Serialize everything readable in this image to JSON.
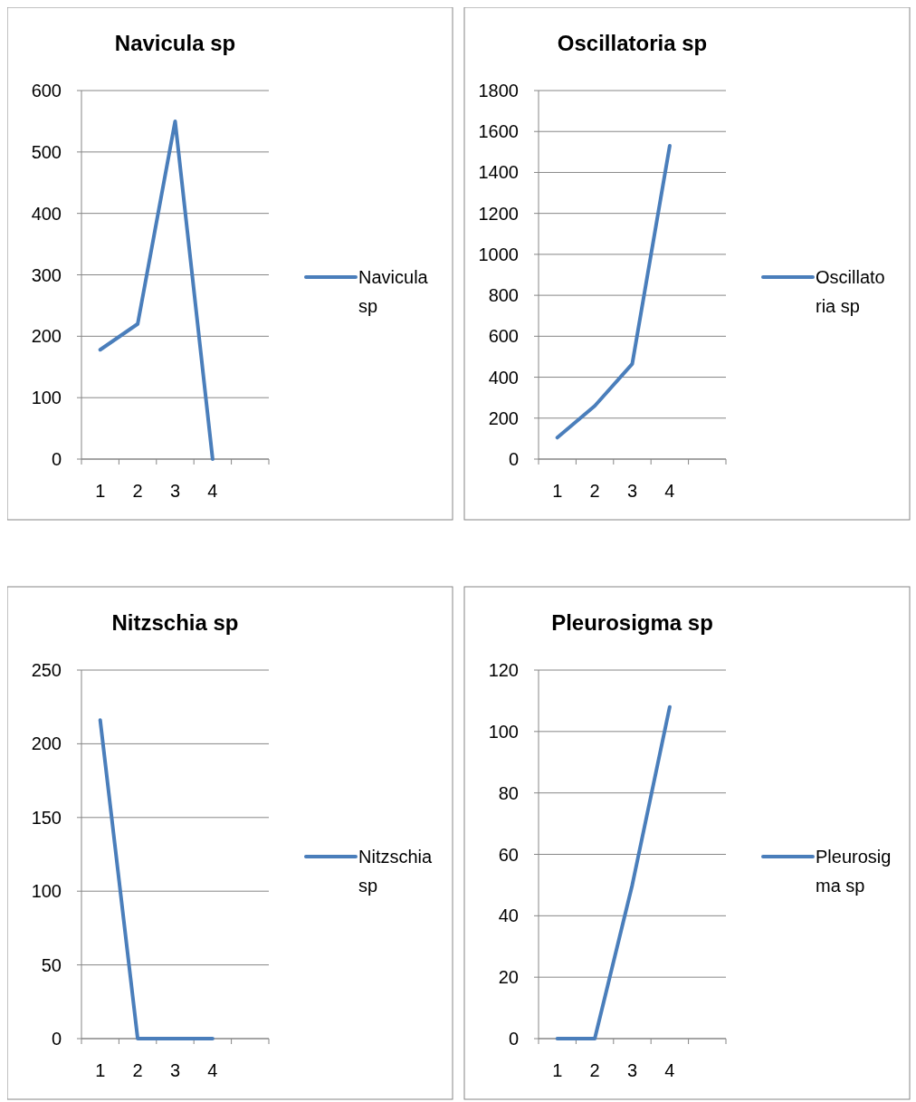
{
  "chart_data": [
    {
      "type": "line",
      "title": "Navicula sp",
      "categories": [
        "1",
        "2",
        "3",
        "4",
        null
      ],
      "series": [
        {
          "name": "Navicula sp",
          "color": "#4a7ebb",
          "values": [
            178,
            220,
            550,
            0,
            null
          ]
        }
      ],
      "ylim": [
        0,
        600
      ],
      "yticks": [
        0,
        100,
        200,
        300,
        400,
        500,
        600
      ],
      "grid": "y",
      "legend": "right"
    },
    {
      "type": "line",
      "title": "Oscillatoria sp",
      "categories": [
        "1",
        "2",
        "3",
        "4",
        null
      ],
      "series": [
        {
          "name": "Oscillatoria sp",
          "color": "#4a7ebb",
          "values": [
            105,
            260,
            465,
            1530,
            null
          ]
        }
      ],
      "ylim": [
        0,
        1800
      ],
      "yticks": [
        0,
        200,
        400,
        600,
        800,
        1000,
        1200,
        1400,
        1600,
        1800
      ],
      "grid": "y",
      "legend": "right"
    },
    {
      "type": "line",
      "title": "Nitzschia sp",
      "categories": [
        "1",
        "2",
        "3",
        "4",
        null
      ],
      "series": [
        {
          "name": "Nitzschia sp",
          "color": "#4a7ebb",
          "values": [
            216,
            0,
            0,
            0,
            null
          ]
        }
      ],
      "ylim": [
        0,
        250
      ],
      "yticks": [
        0,
        50,
        100,
        150,
        200,
        250
      ],
      "grid": "y",
      "legend": "right"
    },
    {
      "type": "line",
      "title": "Pleurosigma sp",
      "categories": [
        "1",
        "2",
        "3",
        "4",
        null
      ],
      "series": [
        {
          "name": "Pleurosigma sp",
          "color": "#4a7ebb",
          "values": [
            0,
            0,
            50,
            108,
            null
          ]
        }
      ],
      "ylim": [
        0,
        120
      ],
      "yticks": [
        0,
        20,
        40,
        60,
        80,
        100,
        120
      ],
      "grid": "y",
      "legend": "right"
    }
  ]
}
